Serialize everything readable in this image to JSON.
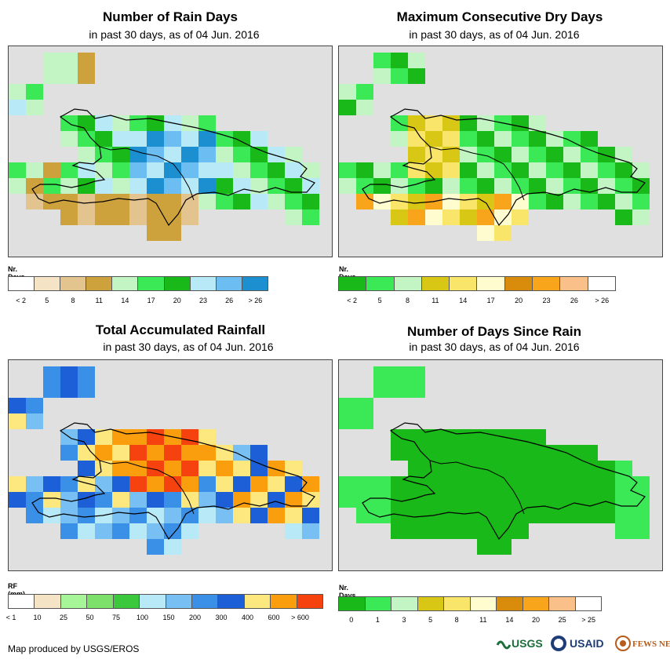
{
  "panels": [
    {
      "id": "rain-days",
      "title": "Number of Rain Days",
      "subtitle": "in past 30 days, as of 04 Jun. 2016",
      "legend_title": "Nr. Days",
      "legend_colors": [
        "#ffffff",
        "#f5e3c6",
        "#e3c38e",
        "#cda23c",
        "#c2f4c4",
        "#3be856",
        "#18b918",
        "#b8e9f7",
        "#6cbdf2",
        "#1c8fd1"
      ],
      "legend_labels": [
        "< 2",
        "5",
        "8",
        "11",
        "14",
        "17",
        "20",
        "23",
        "26",
        "> 26"
      ],
      "legend_label_mode": "center",
      "palette": {
        "A": "#cda23c",
        "B": "#e3c38e",
        "C": "#c2f4c4",
        "D": "#3be856",
        "E": "#18b918",
        "F": "#b8e9f7",
        "G": "#6cbdf2",
        "H": "#1c8fd1"
      },
      "grid": [
        "........................................",
        "........................................",
        "........................................",
        "..............................",
        "........................................",
        "........................................",
        "........................................"
      ]
    },
    {
      "id": "dry-days",
      "title": "Maximum Consecutive Dry Days",
      "subtitle": "in past 30 days, as of 04 Jun. 2016",
      "legend_title": "Nr. Days",
      "legend_colors": [
        "#18b918",
        "#3be856",
        "#c2f4c4",
        "#d9c716",
        "#f9e56a",
        "#fffcd0",
        "#d98c0c",
        "#f9a51c",
        "#f9c08a",
        "#ffffff"
      ],
      "legend_labels": [
        "< 2",
        "5",
        "8",
        "11",
        "14",
        "17",
        "20",
        "23",
        "26",
        "> 26"
      ],
      "legend_label_mode": "center"
    },
    {
      "id": "rainfall",
      "title": "Total Accumulated Rainfall",
      "subtitle": "in past 30 days, as of 04 Jun. 2016",
      "legend_title": "RF (mm)",
      "legend_colors": [
        "#ffffff",
        "#f5e3c6",
        "#a7f599",
        "#7de06b",
        "#3cc83c",
        "#b8e9f7",
        "#78c0f4",
        "#3a8fe6",
        "#1c5fd6",
        "#fde77f",
        "#fb9e0e",
        "#f5420e"
      ],
      "legend_labels": [
        "< 1",
        "10",
        "25",
        "50",
        "75",
        "100",
        "150",
        "200",
        "300",
        "400",
        "600",
        "> 600"
      ],
      "legend_label_mode": "edge"
    },
    {
      "id": "days-since-rain",
      "title": "Number of Days Since Rain",
      "subtitle": "in past 30 days, as of 04 Jun. 2016",
      "legend_title": "Nr. Days",
      "legend_colors": [
        "#18b918",
        "#3be856",
        "#c2f4c4",
        "#d9c716",
        "#f9e56a",
        "#fffcd0",
        "#d98c0c",
        "#f9a51c",
        "#f9c08a",
        "#ffffff"
      ],
      "legend_labels": [
        "0",
        "1",
        "3",
        "5",
        "8",
        "11",
        "14",
        "20",
        "25",
        "> 25"
      ],
      "legend_label_mode": "center"
    }
  ],
  "credit": "Map produced by USGS/EROS",
  "logos": [
    "USGS",
    "USAID",
    "FEWS NET"
  ]
}
